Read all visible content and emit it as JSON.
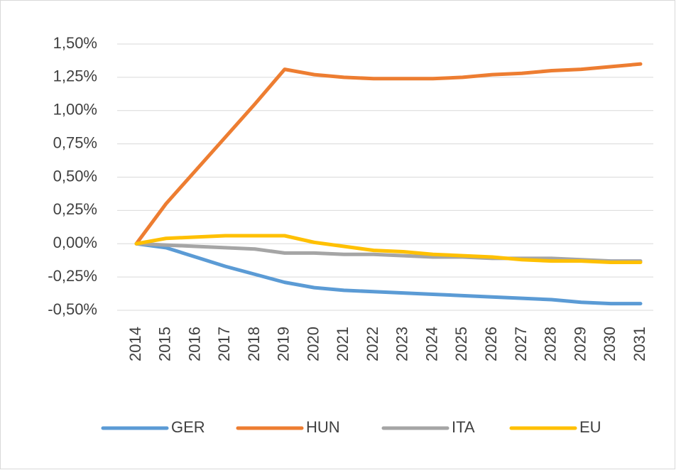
{
  "chart_data": {
    "type": "line",
    "categories": [
      "2014",
      "2015",
      "2016",
      "2017",
      "2018",
      "2019",
      "2020",
      "2021",
      "2022",
      "2023",
      "2024",
      "2025",
      "2026",
      "2027",
      "2028",
      "2029",
      "2030",
      "2031"
    ],
    "series": [
      {
        "name": "GER",
        "color": "#5b9bd5",
        "values": [
          0,
          -0.03,
          -0.1,
          -0.17,
          -0.23,
          -0.29,
          -0.33,
          -0.35,
          -0.36,
          -0.37,
          -0.38,
          -0.39,
          -0.4,
          -0.41,
          -0.42,
          -0.44,
          -0.45,
          -0.45
        ]
      },
      {
        "name": "HUN",
        "color": "#ed7d31",
        "values": [
          0,
          0.3,
          0.55,
          0.8,
          1.05,
          1.31,
          1.27,
          1.25,
          1.24,
          1.24,
          1.24,
          1.25,
          1.27,
          1.28,
          1.3,
          1.31,
          1.33,
          1.35
        ]
      },
      {
        "name": "ITA",
        "color": "#a5a5a5",
        "values": [
          0,
          -0.01,
          -0.02,
          -0.03,
          -0.04,
          -0.07,
          -0.07,
          -0.08,
          -0.08,
          -0.09,
          -0.1,
          -0.1,
          -0.11,
          -0.11,
          -0.11,
          -0.12,
          -0.13,
          -0.13
        ]
      },
      {
        "name": "EU",
        "color": "#ffc000",
        "values": [
          0,
          0.04,
          0.05,
          0.06,
          0.06,
          0.06,
          0.01,
          -0.02,
          -0.05,
          -0.06,
          -0.08,
          -0.09,
          -0.1,
          -0.12,
          -0.13,
          -0.13,
          -0.14,
          -0.14
        ]
      }
    ],
    "ylim": [
      -0.5,
      1.5
    ],
    "yticks": [
      {
        "value": -0.5,
        "label": "-0,50%"
      },
      {
        "value": -0.25,
        "label": "-0,25%"
      },
      {
        "value": 0,
        "label": "0,00%"
      },
      {
        "value": 0.25,
        "label": "0,25%"
      },
      {
        "value": 0.5,
        "label": "0,50%"
      },
      {
        "value": 0.75,
        "label": "0,75%"
      },
      {
        "value": 1,
        "label": "1,00%"
      },
      {
        "value": 1.25,
        "label": "1,25%"
      },
      {
        "value": 1.5,
        "label": "1,50%"
      }
    ],
    "grid": true,
    "legend": "bottom"
  }
}
